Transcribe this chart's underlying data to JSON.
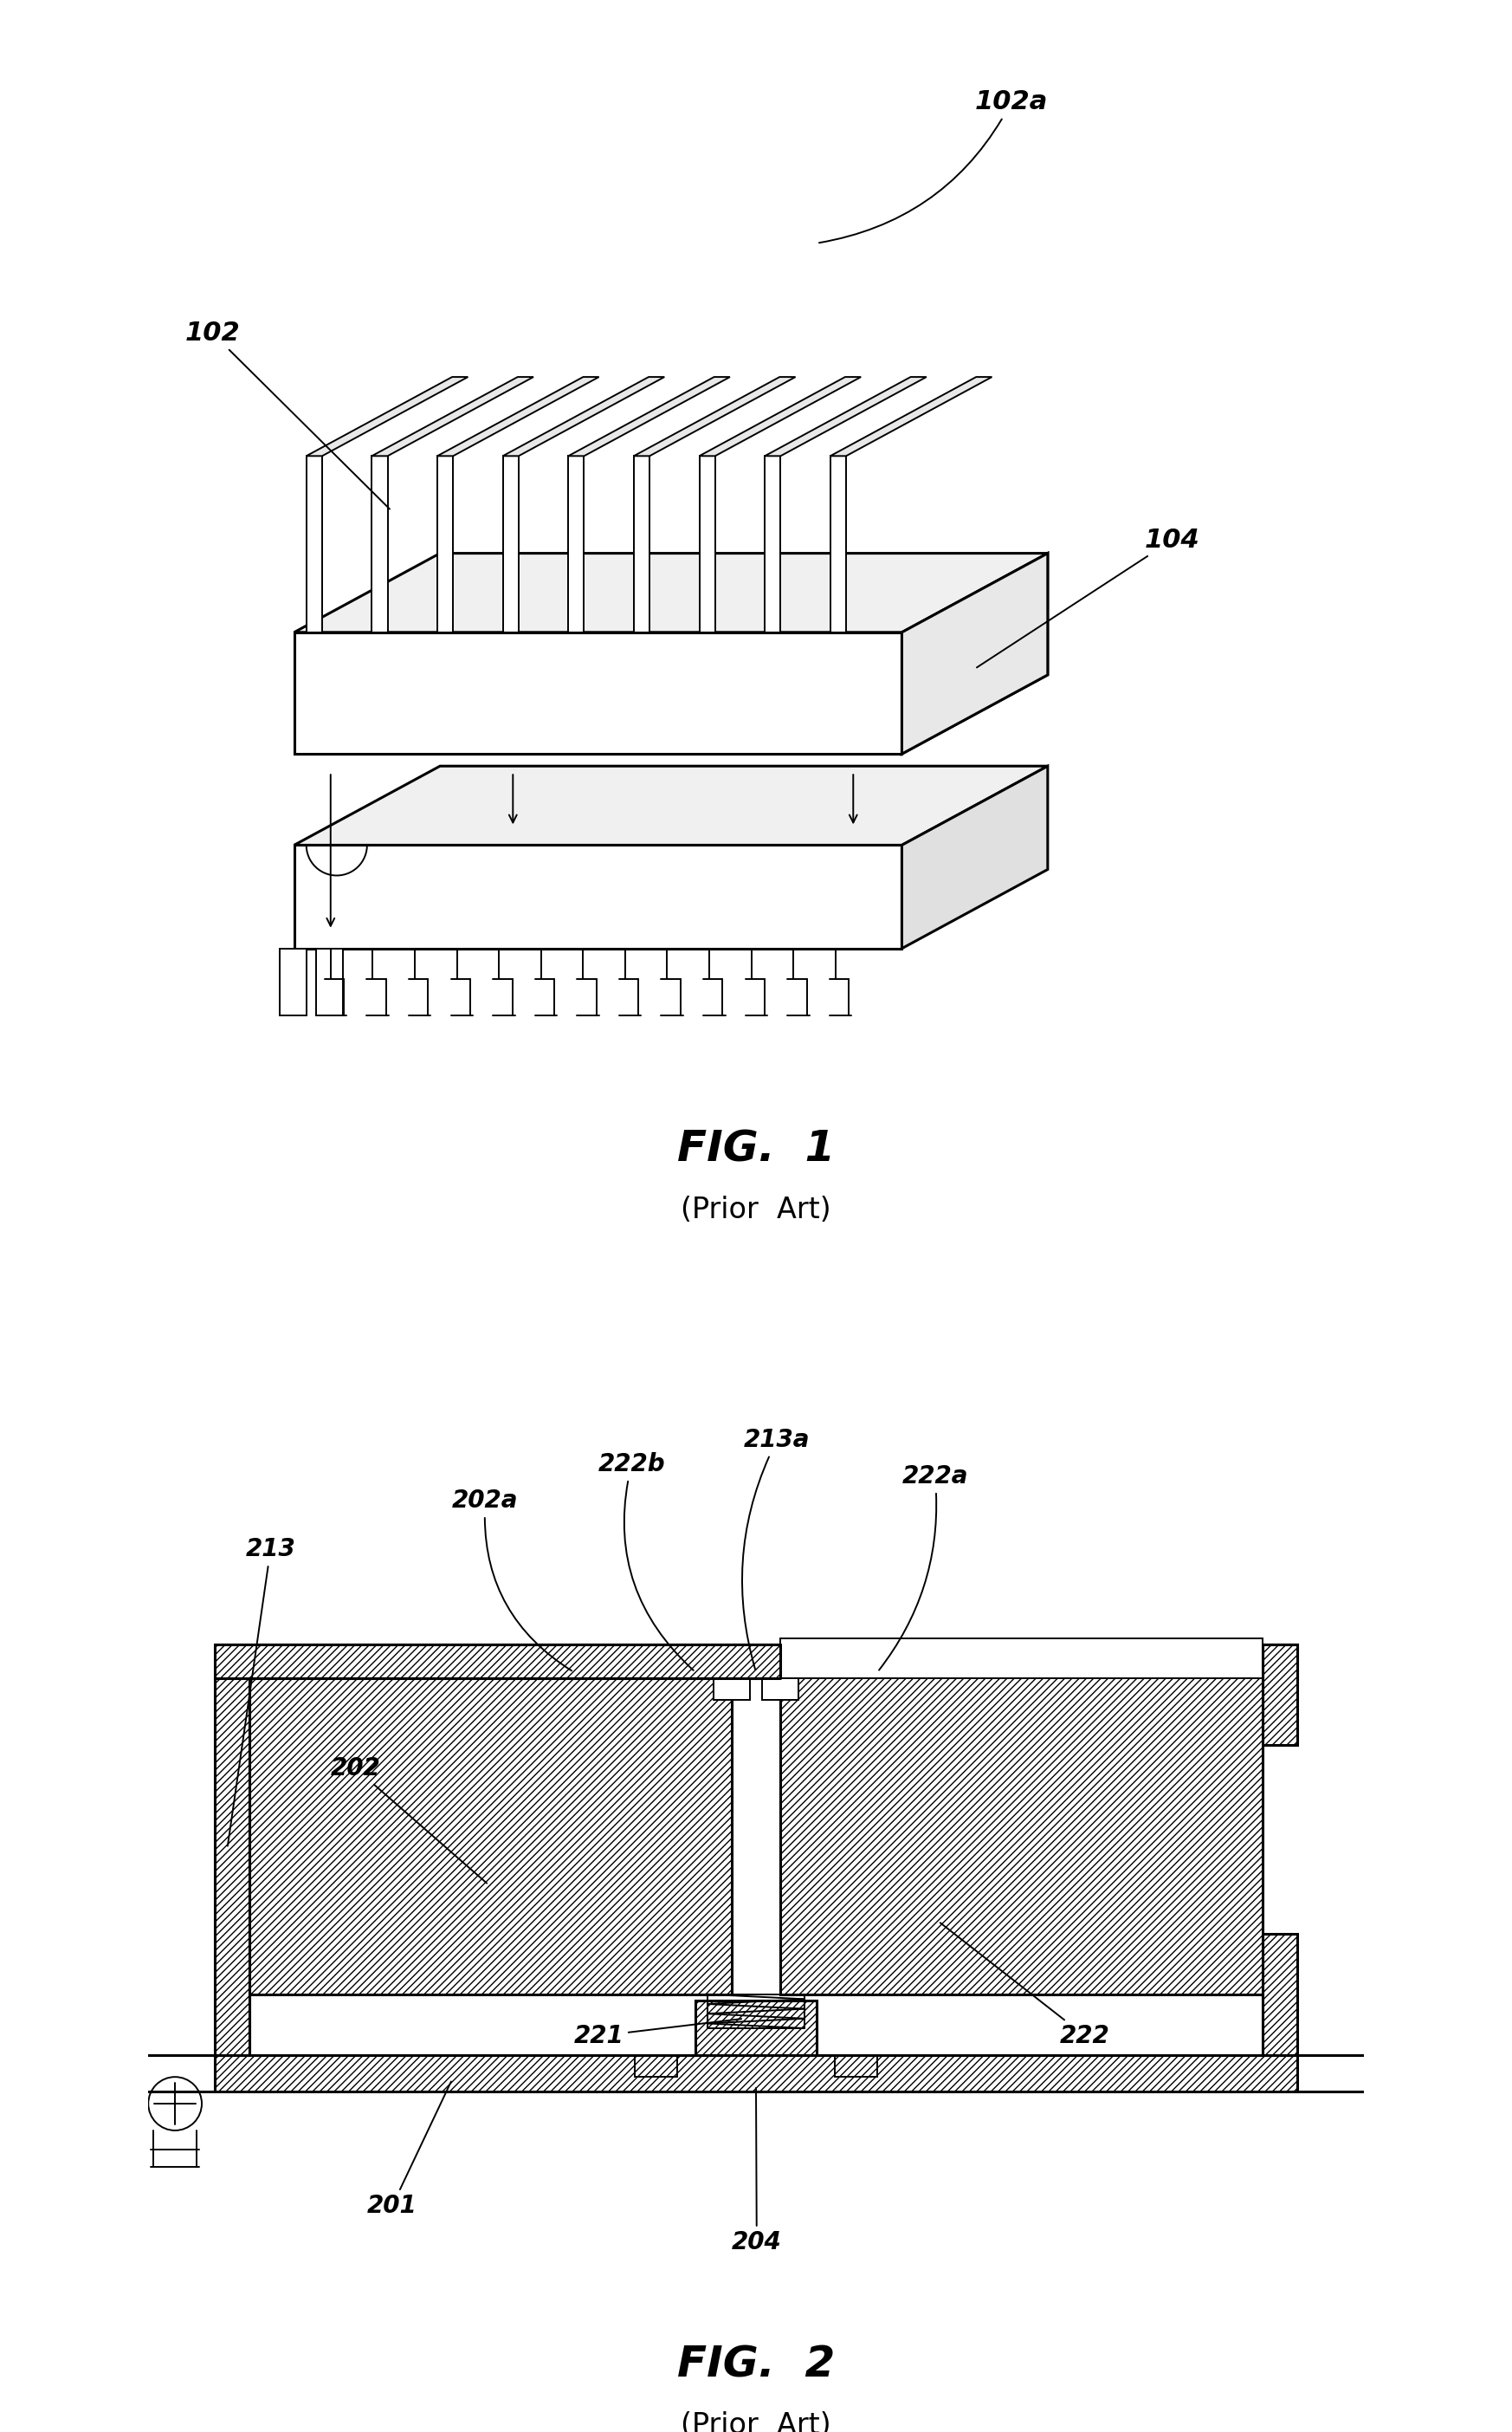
{
  "bg_color": "#ffffff",
  "fig1": {
    "title": "FIG.  1",
    "subtitle": "(Prior  Art)"
  },
  "fig2": {
    "title": "FIG.  2",
    "subtitle": "(Prior  Art)"
  }
}
